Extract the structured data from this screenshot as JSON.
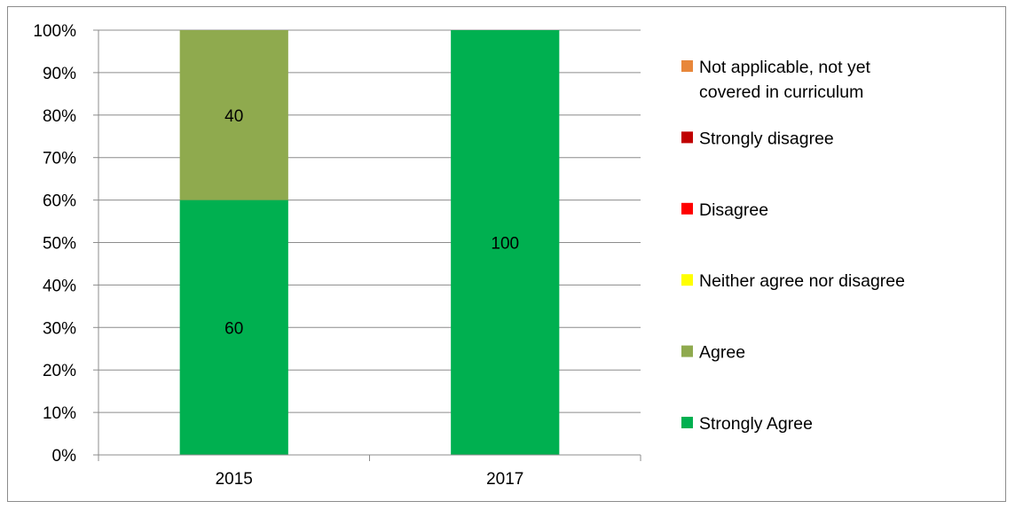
{
  "chart_data": {
    "type": "bar",
    "stacked": true,
    "percent_axis": true,
    "categories": [
      "2015",
      "2017"
    ],
    "series": [
      {
        "name": "Strongly Agree",
        "color": "#00b050",
        "values": [
          60,
          100
        ]
      },
      {
        "name": "Agree",
        "color": "#8faa4e",
        "values": [
          40,
          0
        ]
      },
      {
        "name": "Neither agree nor disagree",
        "color": "#ffff00",
        "values": [
          0,
          0
        ]
      },
      {
        "name": "Disagree",
        "color": "#ff0000",
        "values": [
          0,
          0
        ]
      },
      {
        "name": "Strongly disagree",
        "color": "#c00000",
        "values": [
          0,
          0
        ]
      },
      {
        "name": "Not applicable, not yet covered in curriculum",
        "color": "#e8873a",
        "values": [
          0,
          0
        ]
      }
    ],
    "legend_order": [
      "Not applicable, not yet covered in curriculum",
      "Strongly disagree",
      "Disagree",
      "Neither agree nor disagree",
      "Agree",
      "Strongly Agree"
    ],
    "y_ticks": [
      "0%",
      "10%",
      "20%",
      "30%",
      "40%",
      "50%",
      "60%",
      "70%",
      "80%",
      "90%",
      "100%"
    ],
    "ylim": [
      0,
      100
    ],
    "grid": true,
    "legend_position": "right",
    "title": "",
    "xlabel": "",
    "ylabel": ""
  }
}
